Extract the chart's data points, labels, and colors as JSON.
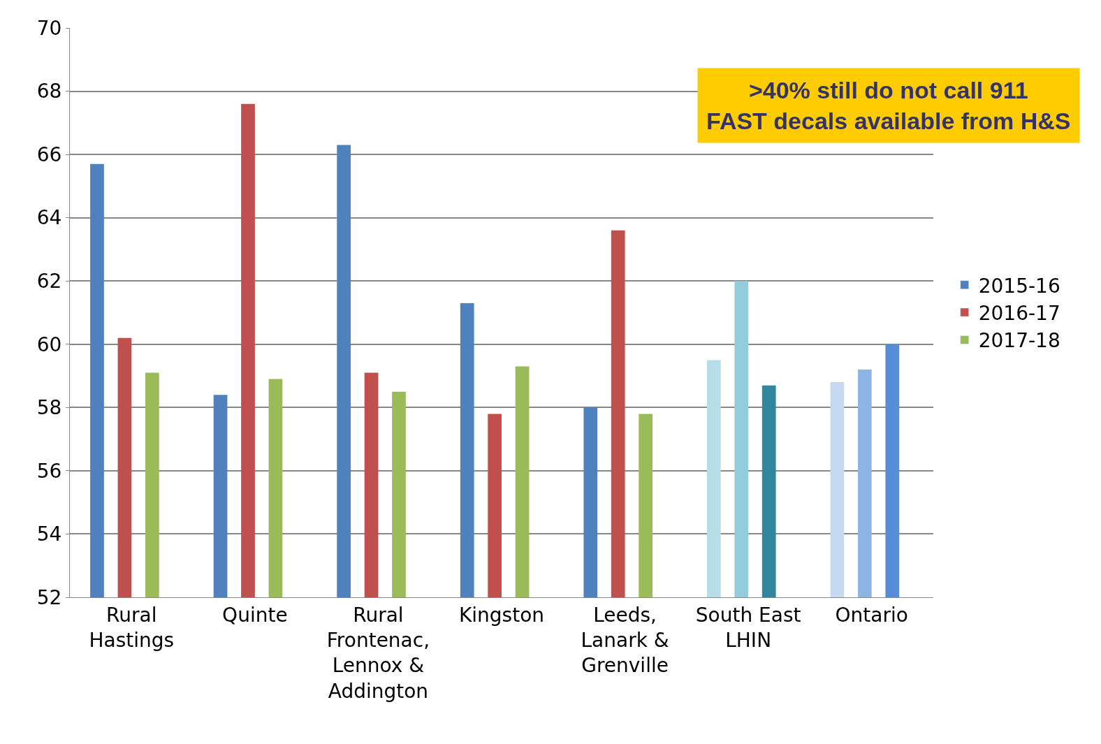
{
  "chart_data": {
    "type": "bar",
    "categories": [
      "Rural Hastings",
      "Quinte",
      "Rural Frontenac, Lennox & Addington",
      "Kingston",
      "Leeds, Lanark & Grenville",
      "South East LHIN",
      "Ontario"
    ],
    "series": [
      {
        "name": "2015-16",
        "color": "#4f81bd",
        "colors": [
          "#4f81bd",
          "#4f81bd",
          "#4f81bd",
          "#4f81bd",
          "#4f81bd",
          "#b7dde8",
          "#c6d9f1"
        ],
        "values": [
          65.7,
          58.4,
          66.3,
          61.3,
          58.0,
          59.5,
          58.8
        ]
      },
      {
        "name": "2016-17",
        "color": "#c0504d",
        "colors": [
          "#c0504d",
          "#c0504d",
          "#c0504d",
          "#c0504d",
          "#c0504d",
          "#93cddd",
          "#8eb4e3"
        ],
        "values": [
          60.2,
          67.6,
          59.1,
          57.8,
          63.6,
          62.0,
          59.2
        ]
      },
      {
        "name": "2017-18",
        "color": "#9bbb59",
        "colors": [
          "#9bbb59",
          "#9bbb59",
          "#9bbb59",
          "#9bbb59",
          "#9bbb59",
          "#31859c",
          "#558ed5"
        ],
        "values": [
          59.1,
          58.9,
          58.5,
          59.3,
          57.8,
          58.7,
          60.0
        ]
      }
    ],
    "ylim": [
      52,
      70
    ],
    "yticks": [
      52,
      54,
      56,
      58,
      60,
      62,
      64,
      66,
      68,
      70
    ],
    "grid": "y",
    "legend": "right",
    "annotations": [
      ">40% still do not call 911\nFAST decals available from H&S"
    ]
  }
}
